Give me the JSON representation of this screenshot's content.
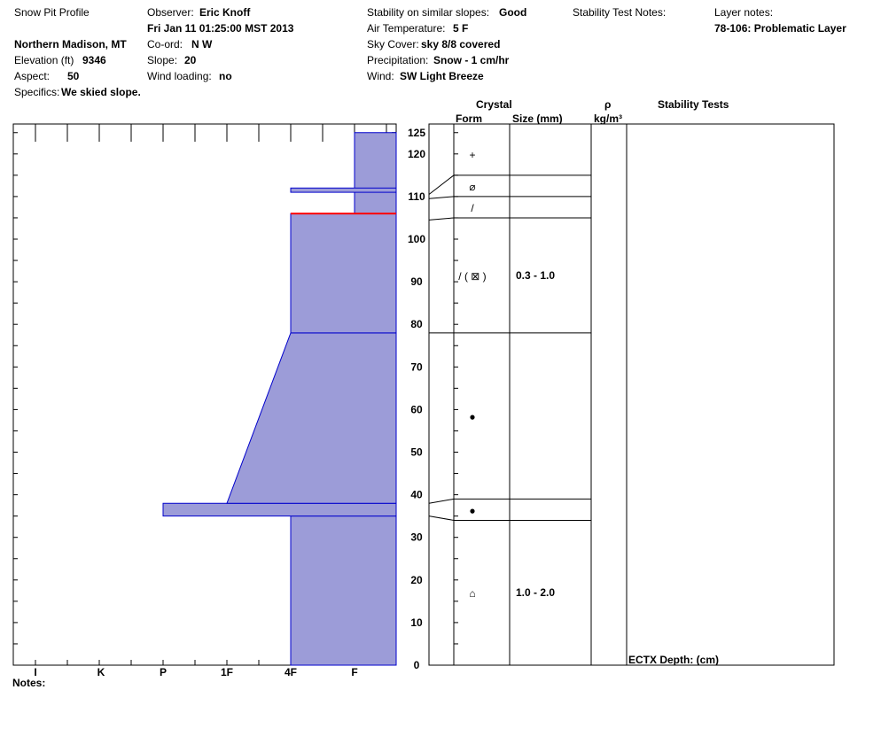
{
  "header": {
    "title": "Snow Pit Profile",
    "location": "Northern Madison, MT",
    "elevation_label": "Elevation (ft)",
    "elevation_value": "9346",
    "aspect_label": "Aspect:",
    "aspect_value": "50",
    "specifics_label": "Specifics:",
    "specifics_value": "We skied slope.",
    "observer_label": "Observer:",
    "observer_value": "Eric Knoff",
    "datetime": "Fri Jan 11 01:25:00 MST 2013",
    "coord_label": "Co-ord:",
    "coord_value": "N  W",
    "slope_label": "Slope:",
    "slope_value": "20",
    "wind_loading_label": "Wind loading:",
    "wind_loading_value": "no",
    "stability_label": "Stability on similar slopes:",
    "stability_value": "Good",
    "air_temp_label": "Air Temperature:",
    "air_temp_value": "5 F",
    "sky_label": "Sky Cover:",
    "sky_value": "sky 8/8 covered",
    "precip_label": "Precipitation:",
    "precip_value": "Snow - 1 cm/hr",
    "wind_label": "Wind:",
    "wind_value": "SW Light Breeze",
    "stability_notes_label": "Stability Test Notes:",
    "layer_notes_label": "Layer notes:",
    "layer_notes_value": "78-106: Problematic Layer"
  },
  "columns": {
    "crystal": "Crystal",
    "form": "Form",
    "size": "Size (mm)",
    "rho": "ρ",
    "rho_unit": "kg/m³",
    "stability_tests": "Stability Tests"
  },
  "footer": {
    "notes_label": "Notes:",
    "ectx_label": "ECTX   Depth: (cm)"
  },
  "chart_data": {
    "type": "area",
    "title": "Snow Pit Profile",
    "y_axis": {
      "range": [
        0,
        125
      ],
      "ticks": [
        0,
        10,
        20,
        30,
        40,
        50,
        60,
        70,
        80,
        90,
        100,
        110,
        120,
        125
      ]
    },
    "hardness_scale": [
      "I",
      "K",
      "P",
      "1F",
      "4F",
      "F"
    ],
    "fill_color": "#9c9cd8",
    "edge_color": "#0000cc",
    "weak_layer_color": "#ff0000",
    "hardness_profile": [
      {
        "from": 0,
        "to": 35,
        "hardness": "4F"
      },
      {
        "from": 35,
        "to": 38,
        "hardness": "P"
      },
      {
        "from": 38,
        "to": 78,
        "hardness_bottom": "1F",
        "hardness_top": "4F"
      },
      {
        "from": 78,
        "to": 106,
        "hardness": "4F"
      },
      {
        "from": 106,
        "to": 125,
        "hardness": "F"
      }
    ],
    "thin_layer": {
      "from": 111,
      "to": 112,
      "hardness": "4F"
    },
    "weak_interface": {
      "depth": 106
    },
    "layers": [
      {
        "from": 115,
        "to": 125,
        "form": "+",
        "size": ""
      },
      {
        "from": 110,
        "to": 115,
        "form": "⌀",
        "size": ""
      },
      {
        "from": 105,
        "to": 110,
        "form": "/",
        "size": ""
      },
      {
        "from": 78,
        "to": 105,
        "form": "/ ( ⊠ )",
        "size": "0.3 - 1.0"
      },
      {
        "from": 39,
        "to": 78,
        "form": "●",
        "size": ""
      },
      {
        "from": 34,
        "to": 39,
        "form": "●",
        "size": ""
      },
      {
        "from": 0,
        "to": 34,
        "form": "⌂",
        "size": "1.0 - 2.0"
      }
    ]
  }
}
